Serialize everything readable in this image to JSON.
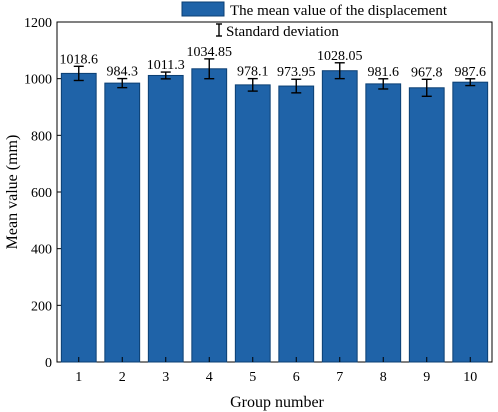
{
  "chart_data": {
    "type": "bar",
    "categories": [
      "1",
      "2",
      "3",
      "4",
      "5",
      "6",
      "7",
      "8",
      "9",
      "10"
    ],
    "series": [
      {
        "name": "The mean value of the displacement",
        "values": [
          1018.6,
          984.3,
          1011.3,
          1034.85,
          978.1,
          973.95,
          1028.05,
          981.6,
          967.8,
          987.6
        ],
        "error": [
          25,
          16,
          12,
          35,
          22,
          24,
          28,
          18,
          30,
          12
        ],
        "value_labels": [
          "1018.6",
          "984.3",
          "1011.3",
          "1034.85",
          "978.1",
          "973.95",
          "1028.05",
          "981.6",
          "967.8",
          "987.6"
        ]
      }
    ],
    "error_legend": "Standard deviation",
    "xlabel": "Group number",
    "ylabel": "Mean value (mm)",
    "ylim": [
      0,
      1200
    ],
    "yticks": [
      0,
      200,
      400,
      600,
      800,
      1000,
      1200
    ],
    "grid": false,
    "legend_position": "top-right",
    "colors": {
      "bar": "#1f63a8",
      "bar_edge": "#0b3f73",
      "error": "#000000"
    }
  }
}
